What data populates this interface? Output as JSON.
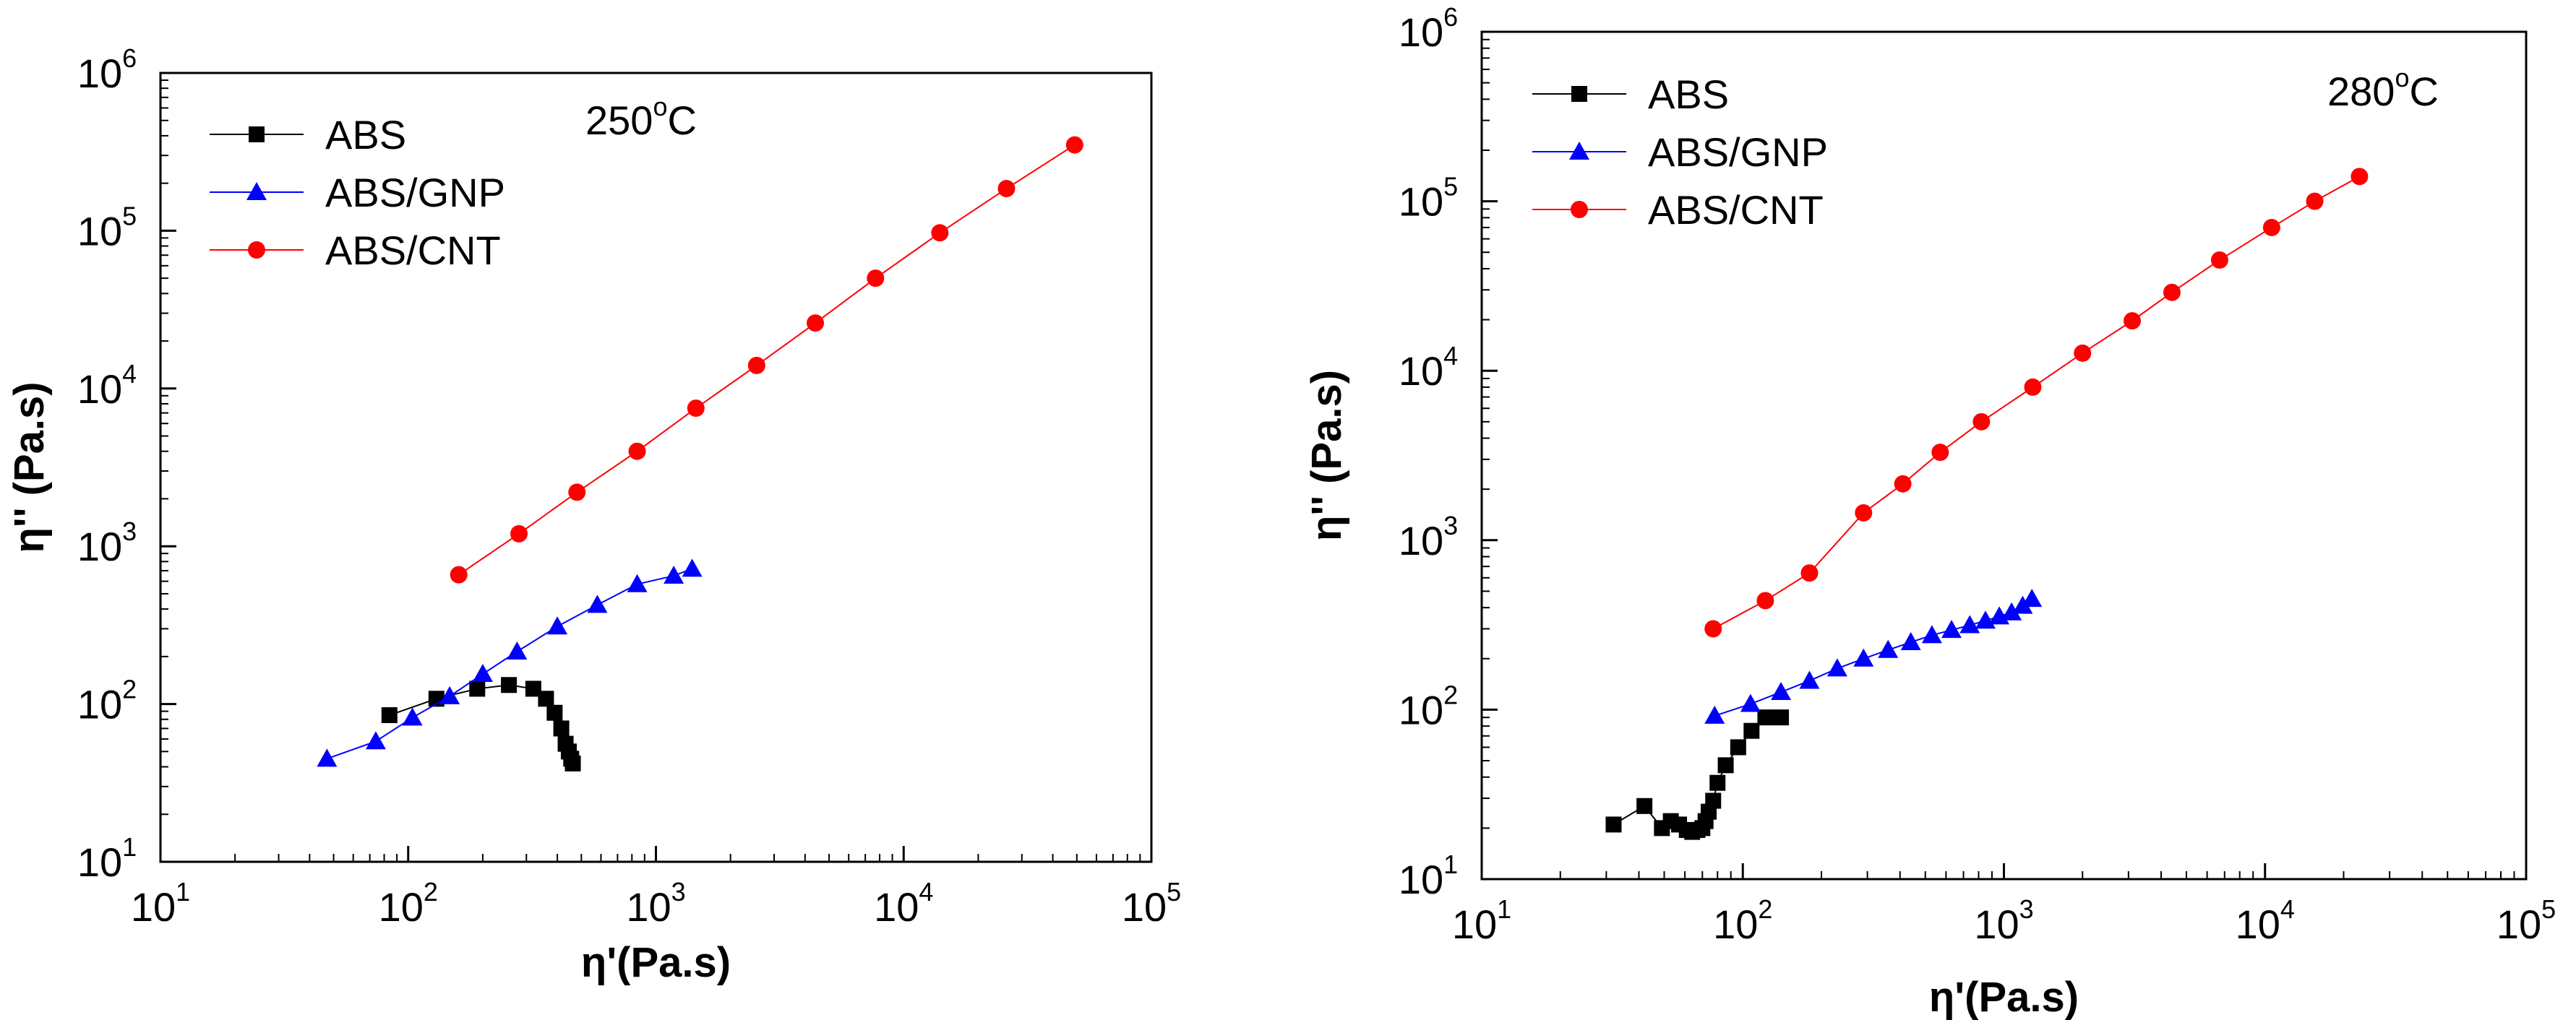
{
  "chart_data": [
    {
      "type": "scatter",
      "panel": "left",
      "title": "",
      "annotation": {
        "base": "250",
        "sup": "o",
        "unit": "C"
      },
      "xlabel": "η'(Pa.s)",
      "ylabel": "η'' (Pa.s)",
      "xscale": "log",
      "yscale": "log",
      "xlim": [
        10,
        100000
      ],
      "ylim": [
        10,
        1000000
      ],
      "xticks": [
        {
          "base": "10",
          "exp": "1"
        },
        {
          "base": "10",
          "exp": "2"
        },
        {
          "base": "10",
          "exp": "3"
        },
        {
          "base": "10",
          "exp": "4"
        },
        {
          "base": "10",
          "exp": "5"
        }
      ],
      "yticks": [
        {
          "base": "10",
          "exp": "1"
        },
        {
          "base": "10",
          "exp": "2"
        },
        {
          "base": "10",
          "exp": "3"
        },
        {
          "base": "10",
          "exp": "4"
        },
        {
          "base": "10",
          "exp": "5"
        },
        {
          "base": "10",
          "exp": "6"
        }
      ],
      "legend_position": "top-left",
      "series": [
        {
          "name": "ABS",
          "marker": "square",
          "color": "#000000",
          "x": [
            84,
            130,
            190,
            255,
            320,
            360,
            390,
            415,
            432,
            445,
            455,
            462
          ],
          "y": [
            85,
            108,
            125,
            132,
            125,
            108,
            88,
            70,
            56,
            50,
            45,
            42
          ]
        },
        {
          "name": "ABS/GNP",
          "marker": "triangle",
          "color": "#0000ff",
          "x": [
            47,
            74,
            104,
            147,
            200,
            275,
            400,
            580,
            840,
            1180,
            1400
          ],
          "y": [
            45,
            58,
            82,
            112,
            155,
            215,
            310,
            425,
            575,
            650,
            720
          ]
        },
        {
          "name": "ABS/CNT",
          "marker": "circle",
          "color": "#ff0000",
          "x": [
            160,
            280,
            480,
            840,
            1450,
            2550,
            4400,
            7700,
            14000,
            26000,
            49000
          ],
          "y": [
            660,
            1200,
            2200,
            4000,
            7500,
            14000,
            26000,
            50000,
            97000,
            185000,
            350000
          ]
        }
      ]
    },
    {
      "type": "scatter",
      "panel": "right",
      "title": "",
      "annotation": {
        "base": "280",
        "sup": "o",
        "unit": "C"
      },
      "xlabel": "η'(Pa.s)",
      "ylabel": "η'' (Pa.s)",
      "xscale": "log",
      "yscale": "log",
      "xlim": [
        10,
        100000
      ],
      "ylim": [
        10,
        1000000
      ],
      "xticks": [
        {
          "base": "10",
          "exp": "1"
        },
        {
          "base": "10",
          "exp": "2"
        },
        {
          "base": "10",
          "exp": "3"
        },
        {
          "base": "10",
          "exp": "4"
        },
        {
          "base": "10",
          "exp": "5"
        }
      ],
      "yticks": [
        {
          "base": "10",
          "exp": "1"
        },
        {
          "base": "10",
          "exp": "2"
        },
        {
          "base": "10",
          "exp": "3"
        },
        {
          "base": "10",
          "exp": "4"
        },
        {
          "base": "10",
          "exp": "5"
        },
        {
          "base": "10",
          "exp": "6"
        }
      ],
      "legend_position": "top-left",
      "series": [
        {
          "name": "ABS",
          "marker": "square",
          "color": "#000000",
          "x": [
            32,
            42,
            49,
            53,
            57,
            61,
            64,
            67,
            70,
            72,
            74,
            77,
            80,
            86,
            96,
            108,
            122,
            140
          ],
          "y": [
            21,
            27,
            20,
            22,
            21,
            19.5,
            19,
            19.5,
            20,
            22,
            25,
            29,
            37,
            47,
            60,
            75,
            90,
            90
          ]
        },
        {
          "name": "ABS/GNP",
          "marker": "triangle",
          "color": "#0000ff",
          "x": [
            78,
            107,
            140,
            180,
            230,
            290,
            360,
            440,
            530,
            630,
            740,
            850,
            960,
            1070,
            1180,
            1280
          ],
          "y": [
            92,
            108,
            127,
            148,
            175,
            200,
            225,
            250,
            275,
            295,
            315,
            335,
            355,
            375,
            410,
            450
          ]
        },
        {
          "name": "ABS/CNT",
          "marker": "circle",
          "color": "#ff0000",
          "x": [
            77,
            122,
            180,
            290,
            410,
            570,
            820,
            1290,
            2000,
            3100,
            4400,
            6700,
            10600,
            15500,
            23000
          ],
          "y": [
            300,
            440,
            640,
            1450,
            2150,
            3300,
            5000,
            8000,
            12700,
            19700,
            29000,
            45000,
            70000,
            100000,
            140000
          ]
        }
      ]
    }
  ]
}
